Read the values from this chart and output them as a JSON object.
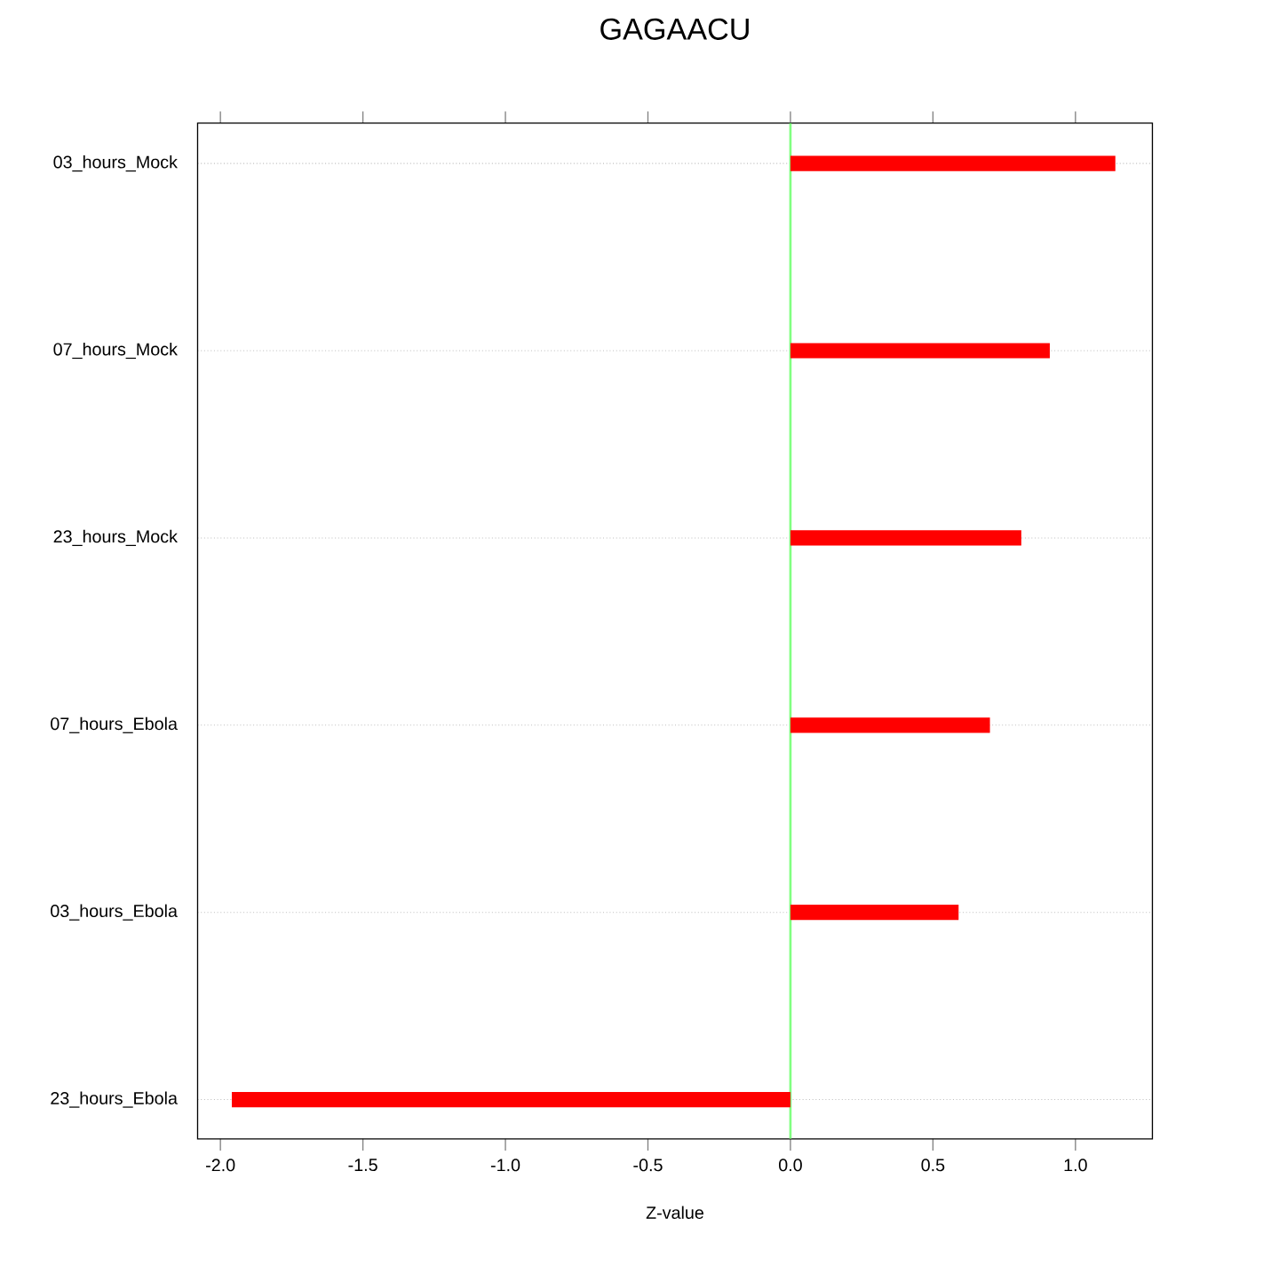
{
  "chart_data": {
    "type": "bar",
    "orientation": "horizontal",
    "title": "GAGAACU",
    "xlabel": "Z-value",
    "categories": [
      "03_hours_Mock",
      "07_hours_Mock",
      "23_hours_Mock",
      "07_hours_Ebola",
      "03_hours_Ebola",
      "23_hours_Ebola"
    ],
    "values": [
      1.14,
      0.91,
      0.81,
      0.7,
      0.59,
      -1.96
    ],
    "color": "#ff0000",
    "xlim": [
      -2.08,
      1.27
    ],
    "xticks": [
      {
        "value": -2.0,
        "label": "-2.0"
      },
      {
        "value": -1.5,
        "label": "-1.5"
      },
      {
        "value": -1.0,
        "label": "-1.0"
      },
      {
        "value": -0.5,
        "label": "-0.5"
      },
      {
        "value": 0.0,
        "label": "0.0"
      },
      {
        "value": 0.5,
        "label": "0.5"
      },
      {
        "value": 1.0,
        "label": "1.0"
      }
    ],
    "grid": "y",
    "ref_lines": [
      {
        "axis": "x",
        "value": 0,
        "color": "#80ff80"
      }
    ]
  }
}
